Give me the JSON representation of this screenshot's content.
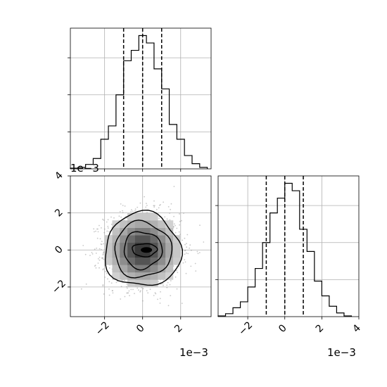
{
  "colors": {
    "ink": "#000000",
    "grid": "#b0b0b0",
    "sample": "#9a9a9a",
    "background": "#ffffff"
  },
  "chart_data": [
    {
      "type": "histogram",
      "panel": "top-left",
      "variable": "x",
      "xlim": [
        -0.0038,
        0.0036
      ],
      "bin_edges_1e-3": [
        -3.8,
        -3.4,
        -3.0,
        -2.6,
        -2.2,
        -1.8,
        -1.4,
        -1.0,
        -0.6,
        -0.2,
        0.2,
        0.6,
        1.0,
        1.4,
        1.8,
        2.2,
        2.6,
        3.0,
        3.4
      ],
      "counts": [
        1,
        2,
        6,
        14,
        40,
        58,
        100,
        146,
        160,
        180,
        170,
        135,
        108,
        60,
        40,
        18,
        7,
        2
      ],
      "ylim": [
        0,
        190
      ],
      "quantiles": [
        -0.001,
        0.0,
        0.001
      ],
      "scale_label": "1e−3"
    },
    {
      "type": "histogram",
      "panel": "bottom-right",
      "variable": "y",
      "xlim": [
        -0.0036,
        0.004
      ],
      "xticks": [
        -2,
        0,
        2,
        4
      ],
      "xtick_labels": [
        "−2",
        "0",
        "2",
        "4"
      ],
      "bin_edges_1e-3": [
        -3.6,
        -3.2,
        -2.8,
        -2.4,
        -2.0,
        -1.6,
        -1.2,
        -0.8,
        -0.4,
        0.0,
        0.4,
        0.8,
        1.2,
        1.6,
        2.0,
        2.4,
        2.8,
        3.2,
        3.6
      ],
      "counts": [
        1,
        4,
        12,
        20,
        40,
        65,
        100,
        140,
        160,
        180,
        170,
        118,
        88,
        48,
        28,
        14,
        5,
        1
      ],
      "ylim": [
        0,
        190
      ],
      "quantiles": [
        -0.001,
        0.0,
        0.001
      ],
      "scale_label": "1e−3"
    },
    {
      "type": "scatter_contour",
      "panel": "bottom-left",
      "xlim": [
        -0.0038,
        0.0036
      ],
      "ylim": [
        -0.0036,
        0.004
      ],
      "xticks": [
        -2,
        0,
        2
      ],
      "xtick_labels": [
        "−2",
        "0",
        "2"
      ],
      "yticks": [
        -2,
        0,
        2,
        4
      ],
      "ytick_labels": [
        "−2",
        "0",
        "2",
        "4"
      ],
      "sigma_1e-3": 1.0,
      "contour_radii_sigma": [
        0.5,
        1.0,
        1.5,
        2.0
      ],
      "x_scale_label": "1e−3",
      "y_scale_label": "1e−3"
    }
  ]
}
